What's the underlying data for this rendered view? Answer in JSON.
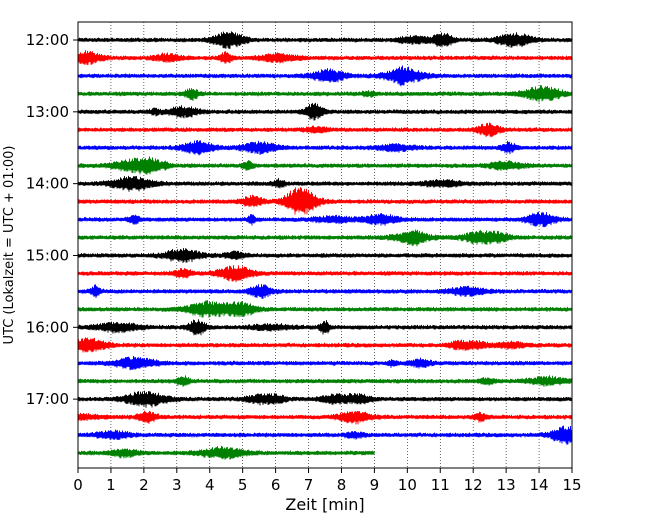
{
  "chart_data": {
    "type": "line",
    "title": "",
    "xlabel": "Zeit  [min]",
    "ylabel": "UTC (Lokalzeit = UTC + 01:00)",
    "xlim": [
      0,
      15
    ],
    "ylim_time": [
      "12:00",
      "17:45"
    ],
    "y_inverted": true,
    "xticks": [
      "0",
      "1",
      "2",
      "3",
      "4",
      "5",
      "6",
      "7",
      "8",
      "9",
      "10",
      "11",
      "12",
      "13",
      "14",
      "15"
    ],
    "yticks": [
      "12:00",
      "13:00",
      "14:00",
      "15:00",
      "16:00",
      "17:00"
    ],
    "grid": "vertical dotted at each minute",
    "legend": "none",
    "colors": {
      "black": "#000000",
      "red": "#ff0000",
      "blue": "#0000ff",
      "green": "#008000"
    },
    "traces": [
      {
        "start": "12:00",
        "end_min": 15,
        "color": "black"
      },
      {
        "start": "12:15",
        "end_min": 15,
        "color": "red"
      },
      {
        "start": "12:30",
        "end_min": 15,
        "color": "blue"
      },
      {
        "start": "12:45",
        "end_min": 15,
        "color": "green"
      },
      {
        "start": "13:00",
        "end_min": 15,
        "color": "black"
      },
      {
        "start": "13:15",
        "end_min": 15,
        "color": "red"
      },
      {
        "start": "13:30",
        "end_min": 15,
        "color": "blue"
      },
      {
        "start": "13:45",
        "end_min": 15,
        "color": "green"
      },
      {
        "start": "14:00",
        "end_min": 15,
        "color": "black"
      },
      {
        "start": "14:15",
        "end_min": 15,
        "color": "red"
      },
      {
        "start": "14:30",
        "end_min": 15,
        "color": "blue"
      },
      {
        "start": "14:45",
        "end_min": 15,
        "color": "green"
      },
      {
        "start": "15:00",
        "end_min": 15,
        "color": "black"
      },
      {
        "start": "15:15",
        "end_min": 15,
        "color": "red"
      },
      {
        "start": "15:30",
        "end_min": 15,
        "color": "blue"
      },
      {
        "start": "15:45",
        "end_min": 15,
        "color": "green"
      },
      {
        "start": "16:00",
        "end_min": 15,
        "color": "black"
      },
      {
        "start": "16:15",
        "end_min": 15,
        "color": "red"
      },
      {
        "start": "16:30",
        "end_min": 15,
        "color": "blue"
      },
      {
        "start": "16:45",
        "end_min": 15,
        "color": "green"
      },
      {
        "start": "17:00",
        "end_min": 15,
        "color": "black"
      },
      {
        "start": "17:15",
        "end_min": 15,
        "color": "red"
      },
      {
        "start": "17:30",
        "end_min": 15,
        "color": "blue"
      },
      {
        "start": "17:45",
        "end_min": 9,
        "color": "green"
      }
    ]
  }
}
